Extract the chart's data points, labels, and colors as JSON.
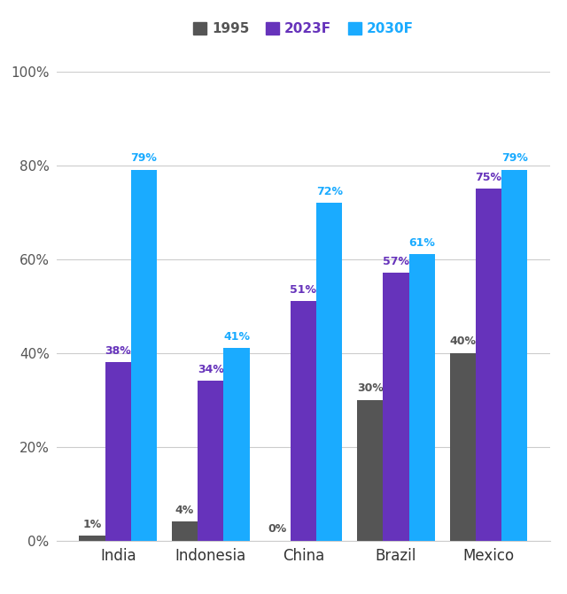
{
  "categories": [
    "India",
    "Indonesia",
    "China",
    "Brazil",
    "Mexico"
  ],
  "series": {
    "1995": [
      1,
      4,
      0,
      30,
      40
    ],
    "2023F": [
      38,
      34,
      51,
      57,
      75
    ],
    "2030F": [
      79,
      41,
      72,
      61,
      79
    ]
  },
  "colors": {
    "1995": "#555555",
    "2023F": "#6633bb",
    "2030F": "#1aabff"
  },
  "label_colors": {
    "1995": "#555555",
    "2023F": "#6633bb",
    "2030F": "#1aabff"
  },
  "legend_labels": [
    "1995",
    "2023F",
    "2030F"
  ],
  "ylim": [
    0,
    100
  ],
  "yticks": [
    0,
    20,
    40,
    60,
    80,
    100
  ],
  "yticklabels": [
    "0%",
    "20%",
    "40%",
    "60%",
    "80%",
    "100%"
  ],
  "bar_width": 0.28,
  "background_color": "#ffffff",
  "grid_color": "#cccccc",
  "label_fontsize": 9,
  "tick_fontsize": 11,
  "legend_fontsize": 11
}
